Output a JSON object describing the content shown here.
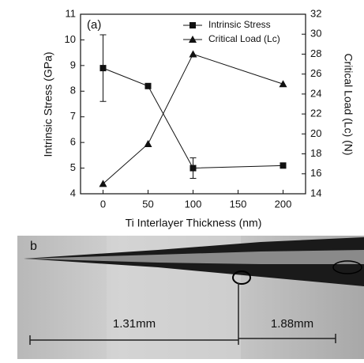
{
  "chart_data": {
    "type": "line",
    "annotation": "(a)",
    "xlabel": "Ti Interlayer Thickness (nm)",
    "ylabel": "Intrinsic Stress (GPa)",
    "y2label": "Critical Load (Lc) (N)",
    "x": [
      0,
      50,
      100,
      200
    ],
    "series": [
      {
        "name": "Intrinsic Stress",
        "color": "#111111",
        "marker": "square",
        "values": [
          8.9,
          8.2,
          5.0,
          5.1
        ],
        "errors": [
          1.3,
          null,
          0.4,
          null
        ]
      },
      {
        "name": "Critical Load (Lc)",
        "color": "#111111",
        "marker": "triangle",
        "axis": "y2",
        "values": [
          15,
          19,
          28,
          25
        ]
      }
    ],
    "xlim": [
      -25,
      225
    ],
    "xticks": [
      0,
      50,
      100,
      150,
      200
    ],
    "ylim": [
      4,
      11
    ],
    "yticks": [
      4,
      5,
      6,
      7,
      8,
      9,
      10,
      11
    ],
    "y2lim": [
      14,
      32
    ],
    "y2ticks": [
      14,
      16,
      18,
      20,
      22,
      24,
      26,
      28,
      30,
      32
    ],
    "legend": "upper-right",
    "grid": false
  },
  "photo": {
    "label": "b",
    "scale_bars": [
      "1.31mm",
      "1.88mm"
    ]
  }
}
